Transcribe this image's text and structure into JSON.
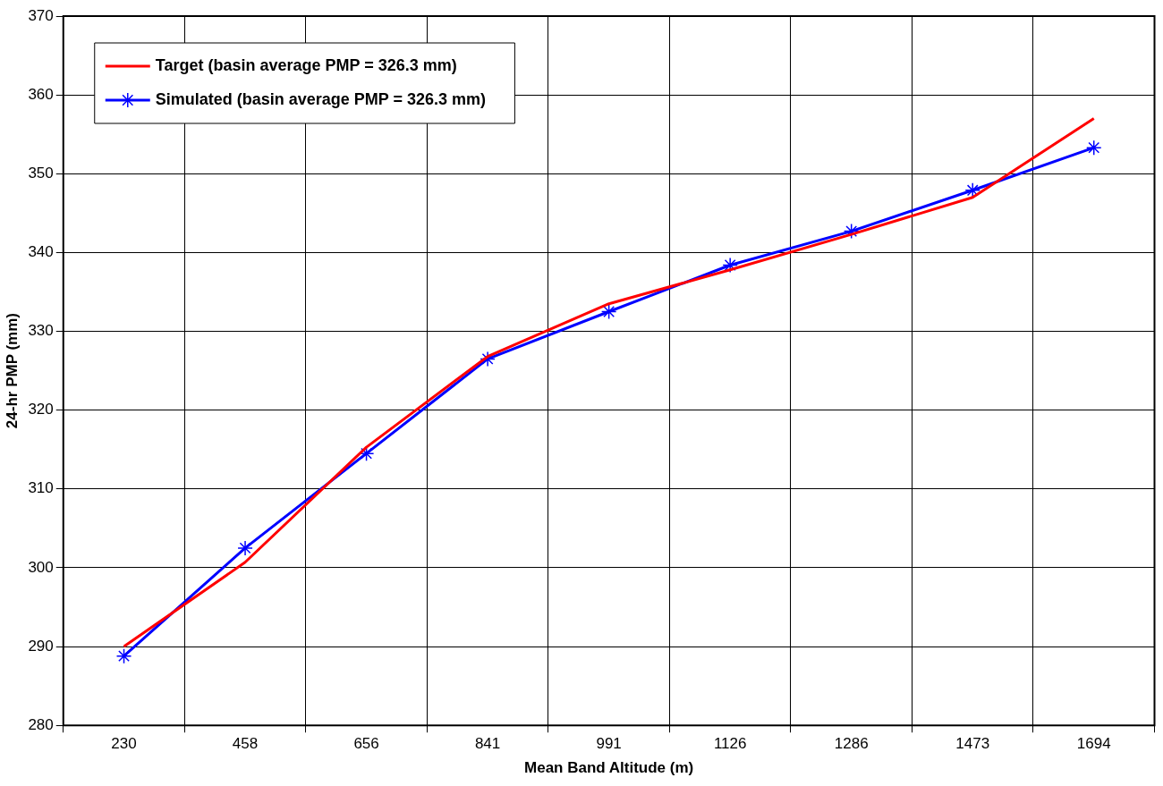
{
  "chart_data": {
    "type": "line",
    "xlabel": "Mean Band Altitude (m)",
    "ylabel": "24-hr PMP (mm)",
    "categories": [
      "230",
      "458",
      "656",
      "841",
      "991",
      "1126",
      "1286",
      "1473",
      "1694"
    ],
    "ylim": [
      280,
      370
    ],
    "yticks": [
      280,
      290,
      300,
      310,
      320,
      330,
      340,
      350,
      360,
      370
    ],
    "grid": true,
    "legend": "top left",
    "line_style": "solid",
    "series": [
      {
        "name": "Target (basin average PMP = 326.3 mm)",
        "color": "#ff0000",
        "marker": "none",
        "values": [
          290,
          300.7,
          315.3,
          326.8,
          333.5,
          337.8,
          342.3,
          347,
          357
        ]
      },
      {
        "name": "Simulated (basin average PMP = 326.3 mm)",
        "color": "#0000ff",
        "marker": "cross",
        "values": [
          288.8,
          302.5,
          314.5,
          326.5,
          332.5,
          338.4,
          342.7,
          347.9,
          353.3
        ]
      }
    ]
  }
}
